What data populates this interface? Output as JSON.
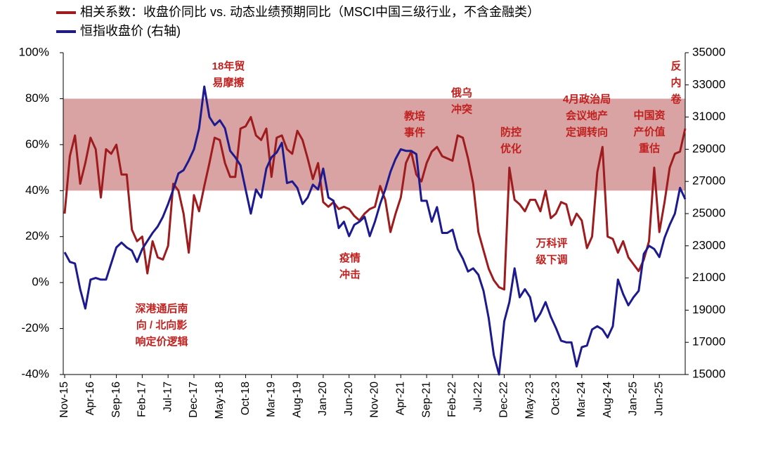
{
  "chart_data": {
    "type": "line",
    "categories": [
      "Nov-15",
      null,
      null,
      null,
      null,
      "Apr-16",
      null,
      null,
      null,
      null,
      "Sep-16",
      null,
      null,
      null,
      null,
      "Feb-17",
      null,
      null,
      null,
      null,
      "Jul-17",
      null,
      null,
      null,
      null,
      "Dec-17",
      null,
      null,
      null,
      null,
      "May-18",
      null,
      null,
      null,
      null,
      "Oct-18",
      null,
      null,
      null,
      null,
      "Mar-19",
      null,
      null,
      null,
      null,
      "Aug-19",
      null,
      null,
      null,
      null,
      "Jan-20",
      null,
      null,
      null,
      null,
      "Jun-20",
      null,
      null,
      null,
      null,
      "Nov-20",
      null,
      null,
      null,
      null,
      "Apr-21",
      null,
      null,
      null,
      null,
      "Sep-21",
      null,
      null,
      null,
      null,
      "Feb-22",
      null,
      null,
      null,
      null,
      "Jul-22",
      null,
      null,
      null,
      null,
      "Dec-22",
      null,
      null,
      null,
      null,
      "May-23",
      null,
      null,
      null,
      null,
      "Oct-23",
      null,
      null,
      null,
      null,
      "Mar-24",
      null,
      null,
      null,
      null,
      "Aug-24",
      null,
      null,
      null,
      null,
      "Jan-25",
      null,
      null,
      null,
      null,
      "Jun-25",
      null,
      null,
      null,
      null,
      null
    ],
    "series": [
      {
        "name": "相关系数：收盘价同比 vs. 动态业绩预期同比（MSCI中国三级行业，不含金融类）",
        "color": "#9e1b1e",
        "axis": "y",
        "values": [
          30,
          55,
          64,
          43,
          52,
          63,
          58,
          37,
          58,
          56,
          60,
          47,
          47,
          23,
          18,
          20,
          4,
          18,
          11,
          10,
          16,
          43,
          40,
          30,
          13,
          38,
          31,
          42,
          52,
          63,
          62,
          52,
          46,
          46,
          67,
          68,
          72,
          64,
          62,
          67,
          46,
          63,
          64,
          58,
          56,
          66,
          62,
          54,
          45,
          52,
          35,
          33,
          35,
          32,
          33,
          32,
          29,
          27,
          30,
          32,
          33,
          42,
          36,
          22,
          30,
          37,
          52,
          57,
          47,
          44,
          52,
          57,
          59,
          55,
          54,
          53,
          64,
          63,
          54,
          43,
          22,
          14,
          6,
          1,
          -2,
          -3,
          50,
          36,
          34,
          31,
          36,
          36,
          31,
          40,
          28,
          30,
          35,
          34,
          25,
          30,
          27,
          15,
          20,
          48,
          59,
          20,
          19,
          13,
          18,
          11,
          8,
          5,
          10,
          18,
          50,
          22,
          35,
          50,
          56,
          57,
          67
        ]
      },
      {
        "name": "恒指收盘价 (右轴)",
        "color": "#1c1a8e",
        "axis": "y2",
        "values": [
          22600,
          22000,
          21900,
          20300,
          19100,
          20900,
          21000,
          20900,
          20900,
          21900,
          22900,
          23200,
          22900,
          22700,
          22000,
          22800,
          23300,
          23800,
          24200,
          24800,
          25600,
          26500,
          27500,
          27700,
          28300,
          29000,
          30300,
          32900,
          31000,
          30500,
          30800,
          30300,
          28900,
          28500,
          28000,
          26500,
          25000,
          26500,
          26000,
          27800,
          28500,
          28800,
          29400,
          26900,
          27000,
          26600,
          25600,
          26000,
          26800,
          26500,
          27800,
          26000,
          25800,
          24100,
          24500,
          23600,
          24300,
          24500,
          24800,
          23600,
          24500,
          25600,
          26500,
          27600,
          28400,
          29000,
          28900,
          28900,
          28700,
          25800,
          25800,
          24500,
          25400,
          23800,
          23800,
          24000,
          22800,
          22200,
          21400,
          21600,
          21200,
          20200,
          18500,
          16200,
          15000,
          18300,
          19500,
          21600,
          19800,
          20300,
          19800,
          18300,
          18800,
          19500,
          18600,
          17900,
          17100,
          17000,
          17000,
          15500,
          16700,
          16800,
          17800,
          18000,
          17800,
          17300,
          18000,
          20900,
          20000,
          19300,
          19800,
          20200,
          22500,
          23000,
          22800,
          22300,
          23500,
          24300,
          25000,
          26600,
          25900
        ]
      }
    ],
    "ylim": [
      -40,
      100
    ],
    "yticks": [
      {
        "value": -40,
        "label": "-40%"
      },
      {
        "value": -20,
        "label": "-20%"
      },
      {
        "value": 0,
        "label": "0%"
      },
      {
        "value": 20,
        "label": "20%"
      },
      {
        "value": 40,
        "label": "40%"
      },
      {
        "value": 60,
        "label": "60%"
      },
      {
        "value": 80,
        "label": "80%"
      },
      {
        "value": 100,
        "label": "100%"
      }
    ],
    "y2lim": [
      15000,
      35000
    ],
    "y2ticks": [
      15000,
      17000,
      19000,
      21000,
      23000,
      25000,
      27000,
      29000,
      31000,
      33000,
      35000
    ],
    "highlight_band": [
      40,
      80
    ],
    "band_color": "#d9a3a4",
    "annotation_color": "#c0201e",
    "annotations": [
      [
        "18年贸",
        "易摩擦"
      ],
      [
        "深港通后南",
        "向 / 北向影",
        "响定价逻辑"
      ],
      [
        "疫情",
        "冲击"
      ],
      [
        "教培",
        "事件"
      ],
      [
        "俄乌",
        "冲突"
      ],
      [
        "防控",
        "优化"
      ],
      [
        "万科评",
        "级下调"
      ],
      [
        "4月政治局",
        "会议地产",
        "定调转向"
      ],
      [
        "中国资",
        "产价值",
        "重估"
      ],
      [
        "反",
        "内",
        "卷"
      ]
    ],
    "legend": "top-left"
  }
}
